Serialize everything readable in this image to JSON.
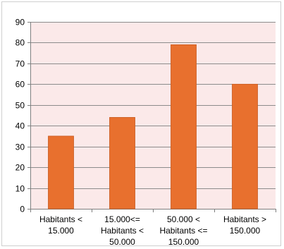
{
  "colors": {
    "plot_bg": "#fbe9e9",
    "bar": "#e8702e",
    "bar_edge": "#c85a1e",
    "gridline": "#8c8c8c",
    "axis": "#7f7f7f"
  },
  "chart_data": {
    "type": "bar",
    "categories": [
      [
        "Habitants <",
        "15.000"
      ],
      [
        "15.000<=",
        "Habitants <",
        "50.000"
      ],
      [
        "50.000 <",
        "Habitants <=",
        "150.000"
      ],
      [
        "Habitants >",
        "150.000"
      ]
    ],
    "values": [
      35,
      44,
      79,
      60
    ],
    "ylim": [
      0,
      90
    ],
    "yticks": [
      0,
      10,
      20,
      30,
      40,
      50,
      60,
      70,
      80,
      90
    ],
    "grid": true,
    "legend": "none"
  }
}
